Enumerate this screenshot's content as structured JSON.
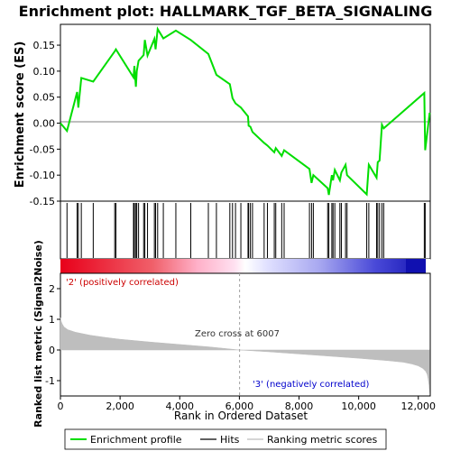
{
  "chart_data": {
    "type": "line",
    "title": "Enrichment plot: HALLMARK_TGF_BETA_SIGNALING",
    "xlabel": "Rank in Ordered Dataset",
    "ylabel_top": "Enrichment score (ES)",
    "ylabel_bottom": "Ranked list metric (Signal2Noise)",
    "xlim": [
      0,
      12400
    ],
    "x_ticks": [
      0,
      2000,
      4000,
      6000,
      8000,
      10000,
      12000
    ],
    "x_tick_labels": [
      "0",
      "2,000",
      "4,000",
      "6,000",
      "8,000",
      "10,000",
      "12,000"
    ],
    "es_ylim": [
      -0.15,
      0.19
    ],
    "es_ticks": [
      -0.15,
      -0.1,
      -0.05,
      0.0,
      0.05,
      0.1,
      0.15
    ],
    "es_tick_labels": [
      "-0.15",
      "-0.10",
      "-0.05",
      "0.00",
      "0.05",
      "0.10",
      "0.15"
    ],
    "metric_ylim": [
      -1.5,
      2.5
    ],
    "metric_ticks": [
      -1,
      0,
      1,
      2
    ],
    "metric_tick_labels": [
      "-1",
      "0",
      "1",
      "2"
    ],
    "zero_cross": 6007,
    "annotations": {
      "positive": "'2' (positively correlated)",
      "negative": "'3' (negatively correlated)",
      "zero_cross": "Zero cross at 6007"
    },
    "legend": {
      "placement": "bottom",
      "entries": [
        "Enrichment profile",
        "Hits",
        "Ranking metric scores"
      ]
    },
    "es_curve": {
      "x": [
        0,
        220,
        560,
        600,
        700,
        1100,
        1820,
        1860,
        2450,
        2480,
        2530,
        2560,
        2620,
        2790,
        2830,
        2920,
        3150,
        3190,
        3260,
        3450,
        3870,
        4370,
        4960,
        5230,
        5680,
        5770,
        5870,
        6050,
        6290,
        6310,
        6370,
        6440,
        6830,
        6940,
        7170,
        7220,
        7420,
        7500,
        8350,
        8420,
        8480,
        8960,
        9000,
        9100,
        9140,
        9200,
        9370,
        9420,
        9560,
        9610,
        10270,
        10340,
        10600,
        10640,
        10700,
        10780,
        10840,
        12200,
        12230,
        12380
      ],
      "y": [
        0.0,
        -0.015,
        0.06,
        0.03,
        0.087,
        0.08,
        0.138,
        0.142,
        0.088,
        0.11,
        0.07,
        0.1,
        0.12,
        0.131,
        0.16,
        0.13,
        0.162,
        0.142,
        0.181,
        0.163,
        0.178,
        0.16,
        0.133,
        0.093,
        0.075,
        0.048,
        0.038,
        0.03,
        0.013,
        -0.005,
        -0.007,
        -0.017,
        -0.038,
        -0.043,
        -0.056,
        -0.048,
        -0.063,
        -0.052,
        -0.088,
        -0.115,
        -0.1,
        -0.125,
        -0.138,
        -0.1,
        -0.11,
        -0.09,
        -0.11,
        -0.095,
        -0.08,
        -0.1,
        -0.137,
        -0.08,
        -0.105,
        -0.075,
        -0.072,
        -0.003,
        -0.01,
        0.058,
        -0.052,
        0.02
      ]
    },
    "hits": [
      220,
      560,
      600,
      700,
      1100,
      1820,
      1860,
      2450,
      2480,
      2530,
      2560,
      2620,
      2790,
      2830,
      2920,
      3150,
      3190,
      3260,
      3450,
      3870,
      4370,
      4960,
      5230,
      5680,
      5770,
      5870,
      6050,
      6290,
      6310,
      6370,
      6440,
      6830,
      6940,
      7170,
      7220,
      7420,
      7500,
      8350,
      8420,
      8480,
      8960,
      9000,
      9100,
      9140,
      9200,
      9370,
      9420,
      9560,
      9610,
      10270,
      10340,
      10600,
      10640,
      10700,
      10780,
      10840,
      12200,
      12230
    ],
    "metric_curve": {
      "x": [
        0,
        20,
        60,
        120,
        250,
        500,
        1000,
        1500,
        2000,
        3000,
        4000,
        5000,
        6007,
        7000,
        8000,
        9000,
        10000,
        11000,
        11500,
        11800,
        12000,
        12150,
        12250,
        12300,
        12330,
        12360,
        12380
      ],
      "y": [
        1.05,
        0.95,
        0.85,
        0.75,
        0.66,
        0.58,
        0.48,
        0.41,
        0.35,
        0.26,
        0.18,
        0.1,
        0.0,
        -0.06,
        -0.13,
        -0.2,
        -0.27,
        -0.35,
        -0.4,
        -0.46,
        -0.52,
        -0.6,
        -0.7,
        -0.8,
        -0.95,
        -1.15,
        -1.4
      ]
    },
    "colors": {
      "enrichment_profile": "#00dd00",
      "hits": "#000000",
      "metric_fill": "#bebebe",
      "positive_text": "#cc0000",
      "negative_text": "#0000cc",
      "zero_line": "#a0a0a0"
    }
  }
}
